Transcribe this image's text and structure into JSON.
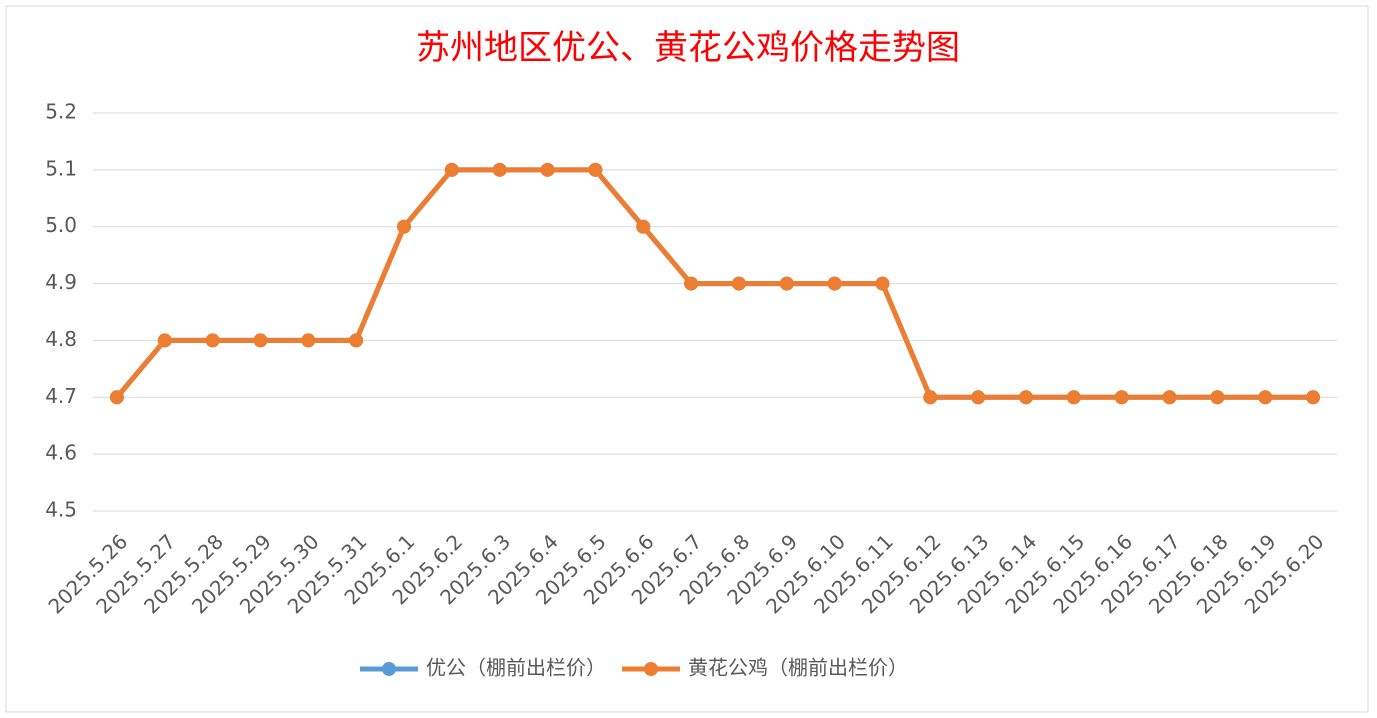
{
  "chart_data": {
    "type": "line",
    "title": "苏州地区优公、黄花公鸡价格走势图",
    "categories": [
      "2025.5.26",
      "2025.5.27",
      "2025.5.28",
      "2025.5.29",
      "2025.5.30",
      "2025.5.31",
      "2025.6.1",
      "2025.6.2",
      "2025.6.3",
      "2025.6.4",
      "2025.6.5",
      "2025.6.6",
      "2025.6.7",
      "2025.6.8",
      "2025.6.9",
      "2025.6.10",
      "2025.6.11",
      "2025.6.12",
      "2025.6.13",
      "2025.6.14",
      "2025.6.15",
      "2025.6.16",
      "2025.6.17",
      "2025.6.18",
      "2025.6.19",
      "2025.6.20"
    ],
    "series": [
      {
        "name": "优公（棚前出栏价）",
        "color": "#5b9bd5",
        "values": [
          4.7,
          4.8,
          4.8,
          4.8,
          4.8,
          4.8,
          5.0,
          5.1,
          5.1,
          5.1,
          5.1,
          5.0,
          4.9,
          4.9,
          4.9,
          4.9,
          4.9,
          4.7,
          4.7,
          4.7,
          4.7,
          4.7,
          4.7,
          4.7,
          4.7,
          4.7
        ]
      },
      {
        "name": "黄花公鸡（棚前出栏价）",
        "color": "#ed7d31",
        "values": [
          4.7,
          4.8,
          4.8,
          4.8,
          4.8,
          4.8,
          5.0,
          5.1,
          5.1,
          5.1,
          5.1,
          5.0,
          4.9,
          4.9,
          4.9,
          4.9,
          4.9,
          4.7,
          4.7,
          4.7,
          4.7,
          4.7,
          4.7,
          4.7,
          4.7,
          4.7
        ]
      }
    ],
    "ylim": [
      4.5,
      5.2
    ],
    "yticks": [
      4.5,
      4.6,
      4.7,
      4.8,
      4.9,
      {
        "value": 5,
        "label": "5.0"
      },
      5.1,
      5.2
    ],
    "grid": true,
    "legend": "bottom"
  }
}
